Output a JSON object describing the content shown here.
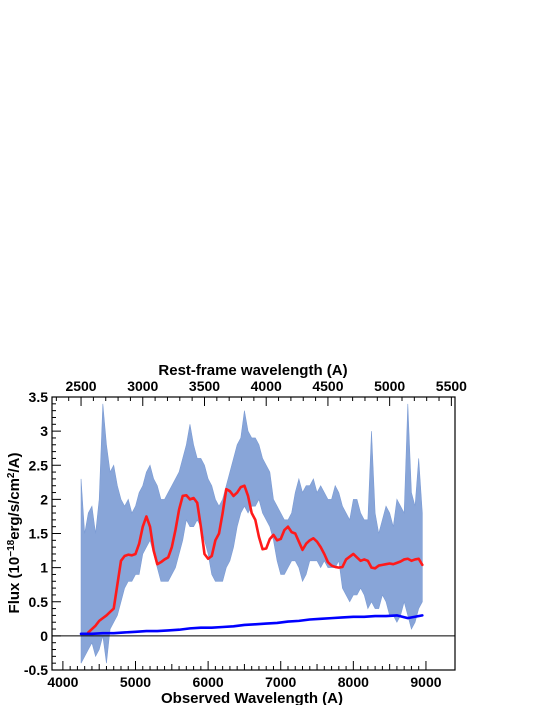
{
  "chart_data": {
    "type": "line",
    "title": "",
    "xlabel": "Observed Wavelength (A)",
    "ylabel": "Flux (10^-18 erg/s/cm^2/A)",
    "ylabel_parts": {
      "pre": "Flux (10",
      "exp": "−18",
      "mid": "erg/s/cm",
      "exp2": "2",
      "post": "/A)"
    },
    "x2label": "Rest-frame wavelength (A)",
    "xlim": [
      3850,
      9400
    ],
    "ylim": [
      -0.5,
      3.5
    ],
    "x_ticks": [
      4000,
      5000,
      6000,
      7000,
      8000,
      9000
    ],
    "y_ticks": [
      -0.5,
      0,
      0.5,
      1,
      1.5,
      2,
      2.5,
      3,
      3.5
    ],
    "x2_ticks": [
      2500,
      3000,
      3500,
      4000,
      4500,
      5000,
      5500
    ],
    "redshift": 0.7,
    "zero_line": true,
    "grid": false,
    "series": [
      {
        "role": "spectrum",
        "color": "#7b9bd4",
        "x": [
          4250,
          4300,
          4350,
          4400,
          4450,
          4500,
          4550,
          4600,
          4650,
          4700,
          4750,
          4800,
          4850,
          4900,
          4950,
          5000,
          5050,
          5100,
          5150,
          5200,
          5250,
          5300,
          5350,
          5400,
          5450,
          5500,
          5550,
          5600,
          5650,
          5700,
          5750,
          5800,
          5850,
          5900,
          5950,
          6000,
          6050,
          6100,
          6150,
          6200,
          6250,
          6300,
          6350,
          6400,
          6450,
          6500,
          6550,
          6600,
          6650,
          6700,
          6750,
          6800,
          6850,
          6900,
          6950,
          7000,
          7050,
          7100,
          7150,
          7200,
          7250,
          7300,
          7350,
          7400,
          7450,
          7500,
          7550,
          7600,
          7650,
          7700,
          7750,
          7800,
          7850,
          7900,
          7950,
          8000,
          8050,
          8100,
          8150,
          8200,
          8250,
          8300,
          8350,
          8400,
          8450,
          8500,
          8550,
          8600,
          8650,
          8700,
          8750,
          8800,
          8850,
          8900,
          8950
        ],
        "y_low": [
          -0.4,
          -0.3,
          -0.2,
          -0.1,
          -0.3,
          -0.2,
          0.0,
          -0.4,
          0.1,
          0.2,
          0.3,
          0.5,
          0.7,
          0.8,
          0.8,
          0.9,
          0.9,
          1.2,
          1.3,
          1.4,
          1.2,
          1.0,
          0.8,
          0.8,
          0.8,
          0.9,
          1.0,
          1.2,
          1.4,
          1.7,
          1.6,
          1.6,
          1.7,
          1.6,
          1.4,
          1.2,
          0.9,
          0.8,
          0.8,
          0.8,
          1.0,
          1.1,
          1.3,
          1.6,
          1.8,
          1.9,
          1.8,
          1.9,
          1.9,
          2.0,
          1.8,
          1.7,
          1.6,
          1.4,
          1.1,
          0.9,
          0.9,
          1.0,
          1.1,
          1.1,
          1.0,
          0.8,
          0.9,
          1.1,
          1.1,
          1.1,
          1.0,
          1.1,
          1.0,
          1.0,
          1.0,
          1.1,
          0.7,
          0.6,
          0.5,
          0.6,
          0.6,
          0.7,
          0.6,
          0.4,
          0.5,
          0.4,
          0.4,
          0.6,
          0.5,
          0.3,
          0.3,
          0.2,
          0.3,
          0.5,
          0.3,
          0.1,
          0.2,
          0.4,
          0.5
        ],
        "y_high": [
          2.3,
          1.5,
          1.8,
          1.9,
          1.5,
          2.0,
          3.4,
          2.8,
          2.4,
          2.5,
          2.2,
          2.0,
          1.9,
          2.0,
          1.8,
          1.9,
          2.1,
          2.2,
          2.4,
          2.5,
          2.3,
          2.2,
          2.0,
          2.0,
          2.1,
          2.2,
          2.3,
          2.4,
          2.6,
          2.8,
          3.1,
          2.8,
          2.6,
          2.6,
          2.5,
          2.3,
          2.2,
          2.0,
          1.9,
          2.0,
          2.2,
          2.4,
          2.6,
          2.8,
          2.9,
          3.3,
          3.0,
          2.9,
          2.9,
          2.8,
          2.6,
          2.5,
          2.4,
          2.0,
          1.9,
          1.8,
          1.7,
          1.7,
          1.8,
          2.1,
          2.3,
          2.1,
          2.2,
          2.2,
          2.3,
          2.1,
          2.2,
          2.1,
          2.0,
          2.0,
          2.2,
          2.1,
          1.9,
          1.8,
          1.7,
          2.0,
          2.0,
          1.8,
          1.7,
          1.7,
          3.0,
          1.8,
          1.5,
          1.7,
          1.9,
          1.8,
          1.6,
          2.0,
          1.9,
          1.8,
          3.4,
          2.1,
          1.9,
          2.6,
          1.8
        ]
      },
      {
        "role": "model",
        "color": "#ff1a1a",
        "x": [
          4350,
          4400,
          4450,
          4500,
          4550,
          4600,
          4650,
          4700,
          4750,
          4800,
          4850,
          4900,
          4950,
          5000,
          5050,
          5100,
          5150,
          5200,
          5250,
          5300,
          5350,
          5400,
          5450,
          5500,
          5550,
          5600,
          5650,
          5700,
          5750,
          5800,
          5850,
          5900,
          5950,
          6000,
          6050,
          6100,
          6150,
          6200,
          6250,
          6300,
          6350,
          6400,
          6450,
          6500,
          6550,
          6600,
          6650,
          6700,
          6750,
          6800,
          6850,
          6900,
          6950,
          7000,
          7050,
          7100,
          7150,
          7200,
          7250,
          7300,
          7350,
          7400,
          7450,
          7500,
          7550,
          7600,
          7650,
          7700,
          7750,
          7800,
          7850,
          7900,
          7950,
          8000,
          8050,
          8100,
          8150,
          8200,
          8250,
          8300,
          8350,
          8400,
          8450,
          8500,
          8550,
          8600,
          8650,
          8700,
          8750,
          8800,
          8850,
          8900,
          8950
        ],
        "y": [
          0.05,
          0.1,
          0.15,
          0.22,
          0.26,
          0.3,
          0.35,
          0.4,
          0.75,
          1.1,
          1.17,
          1.19,
          1.18,
          1.2,
          1.35,
          1.6,
          1.75,
          1.6,
          1.25,
          1.05,
          1.08,
          1.12,
          1.15,
          1.3,
          1.55,
          1.85,
          2.05,
          2.06,
          2.0,
          2.02,
          1.95,
          1.6,
          1.2,
          1.13,
          1.17,
          1.4,
          1.5,
          1.8,
          2.15,
          2.12,
          2.05,
          2.1,
          2.18,
          2.2,
          2.05,
          1.8,
          1.7,
          1.45,
          1.27,
          1.28,
          1.42,
          1.48,
          1.4,
          1.42,
          1.55,
          1.6,
          1.52,
          1.5,
          1.38,
          1.26,
          1.35,
          1.4,
          1.43,
          1.38,
          1.3,
          1.2,
          1.08,
          1.03,
          1.01,
          1.0,
          1.01,
          1.12,
          1.16,
          1.2,
          1.15,
          1.1,
          1.12,
          1.1,
          1.0,
          0.99,
          1.03,
          1.04,
          1.05,
          1.06,
          1.05,
          1.07,
          1.09,
          1.12,
          1.13,
          1.1,
          1.12,
          1.13,
          1.04
        ]
      },
      {
        "role": "model",
        "color": "#0000ff",
        "x": [
          4250,
          4400,
          4550,
          4700,
          4850,
          5000,
          5150,
          5300,
          5450,
          5600,
          5750,
          5900,
          6050,
          6200,
          6350,
          6500,
          6650,
          6800,
          6950,
          7100,
          7250,
          7400,
          7550,
          7700,
          7850,
          8000,
          8150,
          8300,
          8450,
          8600,
          8750,
          8850,
          8950
        ],
        "y": [
          0.03,
          0.03,
          0.04,
          0.04,
          0.05,
          0.06,
          0.07,
          0.07,
          0.08,
          0.09,
          0.11,
          0.12,
          0.12,
          0.13,
          0.14,
          0.16,
          0.17,
          0.18,
          0.19,
          0.21,
          0.22,
          0.24,
          0.25,
          0.26,
          0.27,
          0.28,
          0.28,
          0.29,
          0.29,
          0.3,
          0.26,
          0.28,
          0.3
        ]
      }
    ]
  }
}
